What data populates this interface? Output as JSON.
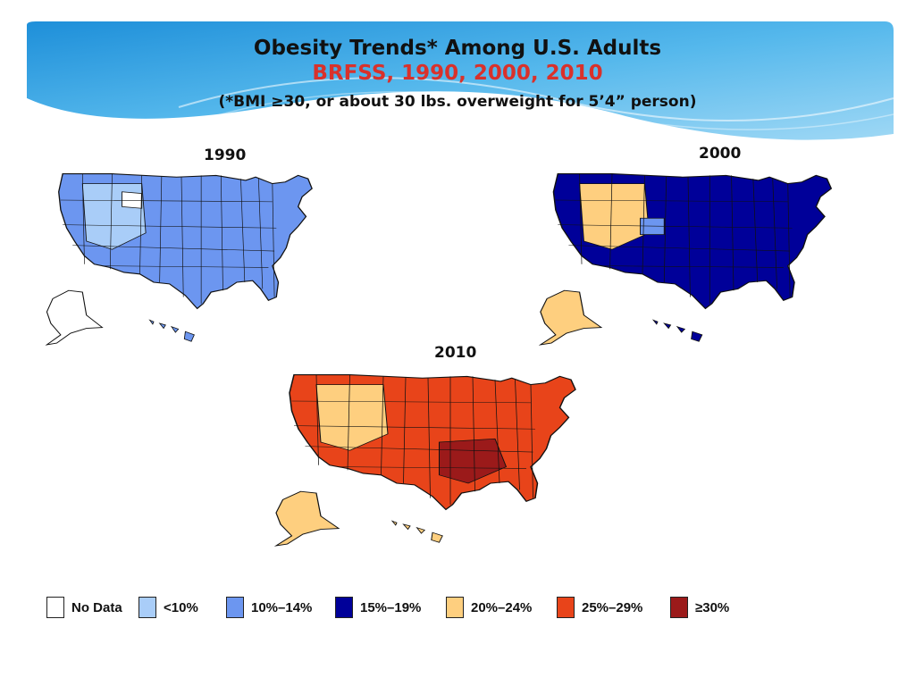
{
  "title": {
    "main": "Obesity Trends* Among U.S. Adults",
    "sub": "BRFSS, 1990, 2000, 2010",
    "note": "(*BMI ≥30, or about 30 lbs. overweight for 5’4” person)"
  },
  "maps": [
    {
      "year": "1990",
      "fill": "#6c96f0",
      "accent": "#a9cdf8",
      "nodata": "#ffffff"
    },
    {
      "year": "2000",
      "fill": "#000099",
      "accent": "#fecf7f",
      "nodata": "#6c96f0"
    },
    {
      "year": "2010",
      "fill": "#e8441a",
      "accent": "#fecf7f",
      "nodata": "#9b1a1a"
    }
  ],
  "legend": [
    {
      "label": "No Data",
      "color": "#ffffff"
    },
    {
      "label": "<10%",
      "color": "#a9cdf8"
    },
    {
      "label": "10%–14%",
      "color": "#6c96f0"
    },
    {
      "label": "15%–19%",
      "color": "#000099"
    },
    {
      "label": "20%–24%",
      "color": "#fecf7f"
    },
    {
      "label": "25%–29%",
      "color": "#e8441a"
    },
    {
      "label": "≥30%",
      "color": "#9b1a1a"
    }
  ],
  "colors": {
    "banner_light": "#d9f0fb",
    "banner_mid": "#2ba3e3",
    "subtitle": "#d9312b"
  }
}
